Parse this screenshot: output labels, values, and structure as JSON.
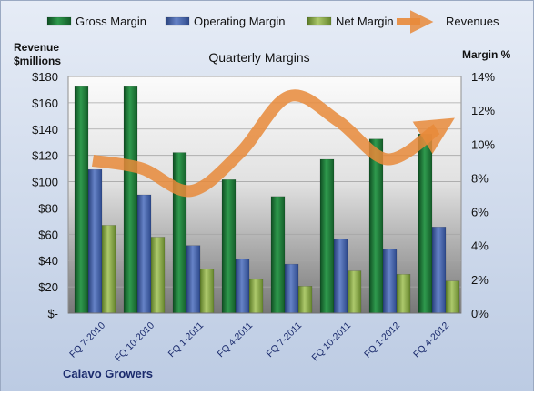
{
  "chart_data": {
    "type": "bar",
    "title": "Quarterly Margins",
    "y_left_label": [
      "Revenue",
      "$millions"
    ],
    "y_right_label": "Margin %",
    "footer": "Calavo Growers",
    "categories": [
      "FQ 7-2010",
      "FQ 10-2010",
      "FQ 1-2011",
      "FQ 4-2011",
      "FQ 7-2011",
      "FQ 10-2011",
      "FQ 1-2012",
      "FQ 4-2012"
    ],
    "series": [
      {
        "name": "Gross Margin",
        "type": "bar",
        "axis": "right",
        "color": "#1f7a3a",
        "values": [
          13.4,
          13.4,
          9.5,
          7.9,
          6.9,
          9.1,
          10.3,
          10.6
        ]
      },
      {
        "name": "Operating Margin",
        "type": "bar",
        "axis": "right",
        "color": "#3f5fa8",
        "values": [
          8.5,
          7.0,
          4.0,
          3.2,
          2.9,
          4.4,
          3.8,
          5.1
        ]
      },
      {
        "name": "Net Margin",
        "type": "bar",
        "axis": "right",
        "color": "#8cab4a",
        "values": [
          5.2,
          4.5,
          2.6,
          2.0,
          1.6,
          2.5,
          2.3,
          1.9
        ]
      },
      {
        "name": "Revenues",
        "type": "line",
        "axis": "left",
        "color": "#e8893a",
        "values": [
          116,
          110,
          93,
          122,
          165,
          146,
          117,
          140
        ]
      }
    ],
    "y_left": {
      "min": 0,
      "max": 180,
      "step": 20,
      "ticks": [
        "$-",
        "$20",
        "$40",
        "$60",
        "$80",
        "$100",
        "$120",
        "$140",
        "$160",
        "$180"
      ]
    },
    "y_right": {
      "min": 0,
      "max": 14,
      "step": 2,
      "ticks": [
        "0%",
        "2%",
        "4%",
        "6%",
        "8%",
        "10%",
        "12%",
        "14%"
      ]
    },
    "legend_position": "top",
    "grid": true
  }
}
